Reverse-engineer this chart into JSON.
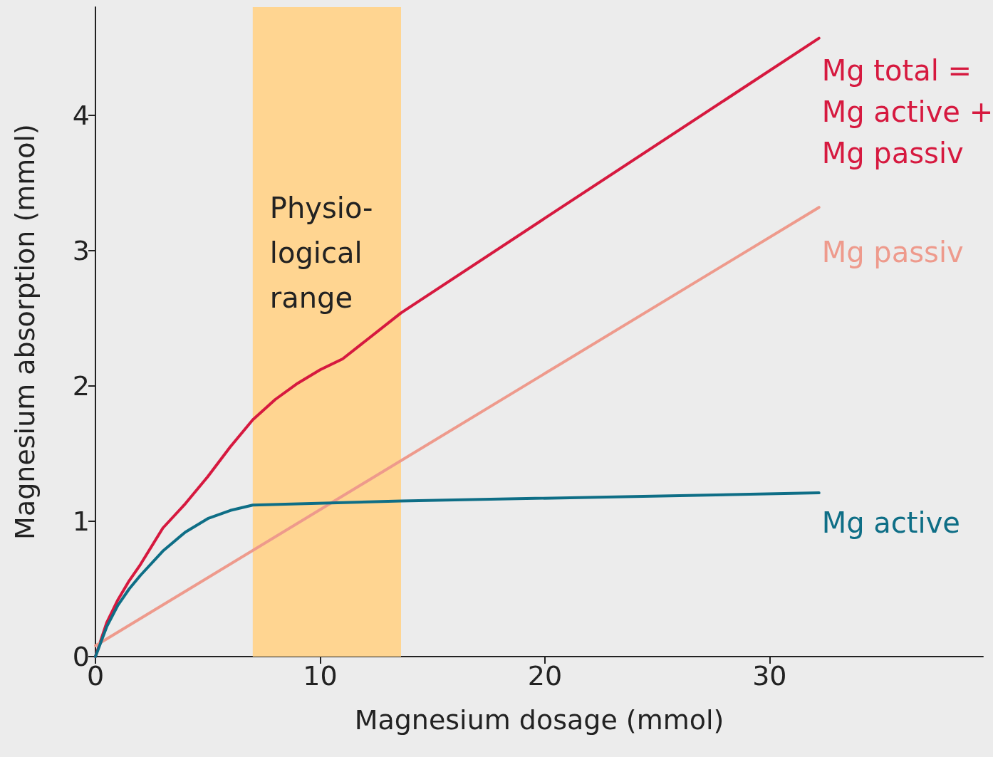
{
  "chart_data": {
    "type": "line",
    "xlabel": "Magnesium dosage (mmol)",
    "ylabel": "Magnesium absorption (mmol)",
    "xlim": [
      0,
      39.5
    ],
    "xticks": [
      0,
      10,
      20,
      30
    ],
    "ylim": [
      0,
      4.8
    ],
    "yticks": [
      0,
      1,
      2,
      3,
      4
    ],
    "grid": false,
    "legend": false,
    "marker": "none",
    "line_style": "solid",
    "series": [
      {
        "name": "Mg total =\nMg active +\nMg passiv",
        "color": "#d6193f",
        "x": [
          0,
          0.5,
          1,
          1.5,
          2,
          3,
          4,
          5,
          6,
          7,
          8,
          9,
          10,
          11,
          13.6,
          20,
          32.2
        ],
        "values": [
          0,
          0.25,
          0.42,
          0.56,
          0.68,
          0.95,
          1.13,
          1.33,
          1.55,
          1.75,
          1.9,
          2.02,
          2.12,
          2.2,
          2.54,
          3.24,
          4.57
        ]
      },
      {
        "name": "Mg passiv",
        "color": "#ee9a8c",
        "x": [
          0,
          32.2
        ],
        "values": [
          0.08,
          3.32
        ]
      },
      {
        "name": "Mg active",
        "color": "#0e6e86",
        "x": [
          0,
          0.5,
          1,
          1.5,
          2,
          3,
          4,
          5,
          6,
          7,
          13.6,
          32.2
        ],
        "values": [
          0,
          0.22,
          0.38,
          0.5,
          0.6,
          0.78,
          0.92,
          1.02,
          1.08,
          1.12,
          1.15,
          1.21
        ]
      }
    ],
    "bands": [
      {
        "axis": "x",
        "from": 7,
        "to": 13.6,
        "label": "Physio-\nlogical\nrange",
        "color": "#ffd591"
      }
    ]
  }
}
